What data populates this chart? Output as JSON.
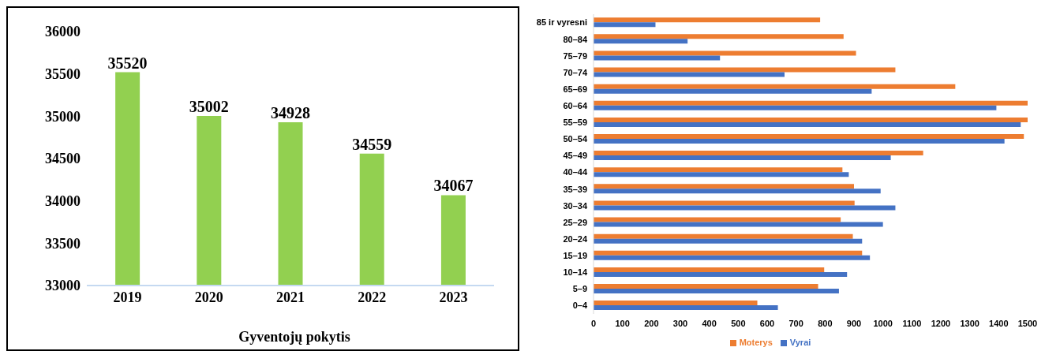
{
  "chart_data": [
    {
      "type": "bar",
      "xlabel": "Gyventojų pokytis",
      "categories": [
        "2019",
        "2020",
        "2021",
        "2022",
        "2023"
      ],
      "values": [
        35520,
        35002,
        34928,
        34559,
        34067
      ],
      "color": "#92d050",
      "ylim": [
        33000,
        36000
      ],
      "yticks": [
        33000,
        33500,
        34000,
        34500,
        35000,
        35500,
        36000
      ],
      "data_labels": true,
      "grid": false
    },
    {
      "type": "bar",
      "orientation": "horizontal",
      "categories": [
        "85 ir vyresni",
        "80–84",
        "75–79",
        "70–74",
        "65–69",
        "60–64",
        "55–59",
        "50–54",
        "45–49",
        "40–44",
        "35–39",
        "30–34",
        "25–29",
        "20–24",
        "15–19",
        "10–14",
        "5–9",
        "0–4"
      ],
      "series": [
        {
          "name": "Moterys",
          "color": "#ed7d31",
          "values": [
            783,
            864,
            907,
            1043,
            1250,
            1500,
            1500,
            1487,
            1139,
            860,
            900,
            902,
            854,
            896,
            928,
            797,
            776,
            566
          ]
        },
        {
          "name": "Vyrai",
          "color": "#4472c4",
          "values": [
            214,
            325,
            437,
            660,
            961,
            1392,
            1476,
            1420,
            1027,
            882,
            992,
            1043,
            1000,
            928,
            955,
            876,
            848,
            637
          ]
        }
      ],
      "xlim": [
        0,
        1500
      ],
      "xticks": [
        0,
        100,
        200,
        300,
        400,
        500,
        600,
        700,
        800,
        900,
        1000,
        1100,
        1200,
        1300,
        1400,
        1500
      ],
      "legend": "bottom",
      "grid": false
    }
  ]
}
